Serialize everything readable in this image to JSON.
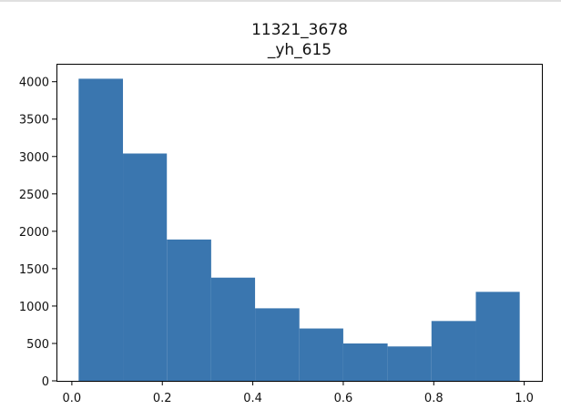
{
  "chart_data": {
    "type": "bar",
    "title_lines": [
      "11321_3678",
      "_yh_615"
    ],
    "xlabel": "",
    "ylabel": "",
    "bins": [
      {
        "x0": 0.015,
        "x1": 0.113,
        "value": 4040
      },
      {
        "x0": 0.113,
        "x1": 0.21,
        "value": 3040
      },
      {
        "x0": 0.21,
        "x1": 0.308,
        "value": 1890
      },
      {
        "x0": 0.308,
        "x1": 0.405,
        "value": 1380
      },
      {
        "x0": 0.405,
        "x1": 0.503,
        "value": 970
      },
      {
        "x0": 0.503,
        "x1": 0.6,
        "value": 700
      },
      {
        "x0": 0.6,
        "x1": 0.698,
        "value": 500
      },
      {
        "x0": 0.698,
        "x1": 0.795,
        "value": 460
      },
      {
        "x0": 0.795,
        "x1": 0.893,
        "value": 800
      },
      {
        "x0": 0.893,
        "x1": 0.99,
        "value": 1190
      }
    ],
    "xlim": [
      -0.034,
      1.039
    ],
    "ylim": [
      0,
      4240
    ],
    "xticks": [
      {
        "value": 0.0,
        "label": "0.0"
      },
      {
        "value": 0.2,
        "label": "0.2"
      },
      {
        "value": 0.4,
        "label": "0.4"
      },
      {
        "value": 0.6,
        "label": "0.6"
      },
      {
        "value": 0.8,
        "label": "0.8"
      },
      {
        "value": 1.0,
        "label": "1.0"
      }
    ],
    "yticks": [
      {
        "value": 0,
        "label": "0"
      },
      {
        "value": 500,
        "label": "500"
      },
      {
        "value": 1000,
        "label": "1000"
      },
      {
        "value": 1500,
        "label": "1500"
      },
      {
        "value": 2000,
        "label": "2000"
      },
      {
        "value": 2500,
        "label": "2500"
      },
      {
        "value": 3000,
        "label": "3000"
      },
      {
        "value": 3500,
        "label": "3500"
      },
      {
        "value": 4000,
        "label": "4000"
      }
    ],
    "bar_color": "#3a76af",
    "grid": false
  }
}
